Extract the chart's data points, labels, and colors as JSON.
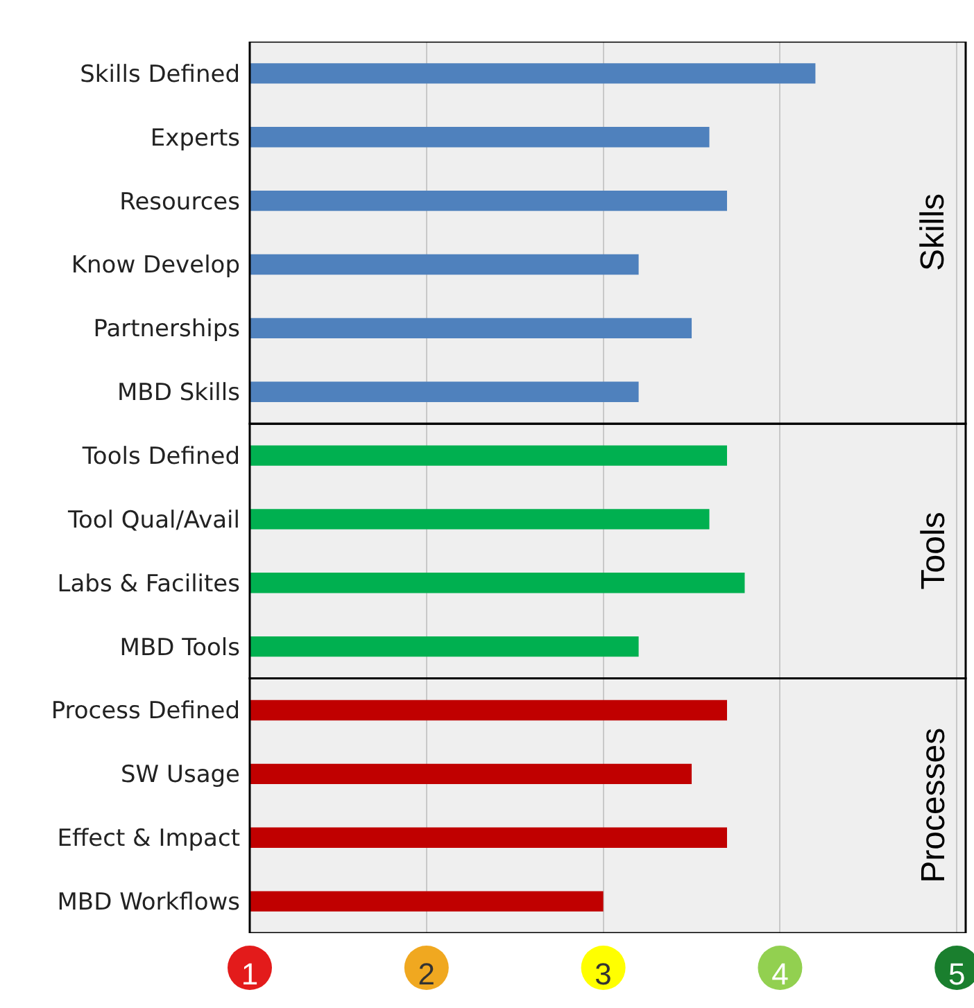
{
  "chart_data": {
    "type": "bar",
    "orientation": "horizontal",
    "categories": [
      "Skills Defined",
      "Experts",
      "Resources",
      "Know Develop",
      "Partnerships",
      "MBD Skills",
      "Tools Defined",
      "Tool Qual/Avail",
      "Labs & Facilites",
      "MBD Tools",
      "Process Defined",
      "SW Usage",
      "Effect & Impact",
      "MBD Workflows"
    ],
    "values": [
      4.2,
      3.6,
      3.7,
      3.2,
      3.5,
      3.2,
      3.7,
      3.6,
      3.8,
      3.2,
      3.7,
      3.5,
      3.7,
      3.0
    ],
    "colors": [
      "#4f81bd",
      "#4f81bd",
      "#4f81bd",
      "#4f81bd",
      "#4f81bd",
      "#4f81bd",
      "#00b050",
      "#00b050",
      "#00b050",
      "#00b050",
      "#c00000",
      "#c00000",
      "#c00000",
      "#c00000"
    ],
    "xlim": [
      1,
      5.05
    ],
    "xticks": [
      1,
      2,
      3,
      4,
      5
    ],
    "grid": "x",
    "bands": [
      {
        "axis": "y",
        "from": "Skills Defined",
        "to": "MBD Skills",
        "label": "Skills",
        "color": "#000000"
      },
      {
        "axis": "y",
        "from": "Tools Defined",
        "to": "MBD Tools",
        "label": "Tools",
        "color": "#000000"
      },
      {
        "axis": "y",
        "from": "Process Defined",
        "to": "MBD Workflows",
        "label": "Processes",
        "color": "#000000"
      }
    ]
  }
}
